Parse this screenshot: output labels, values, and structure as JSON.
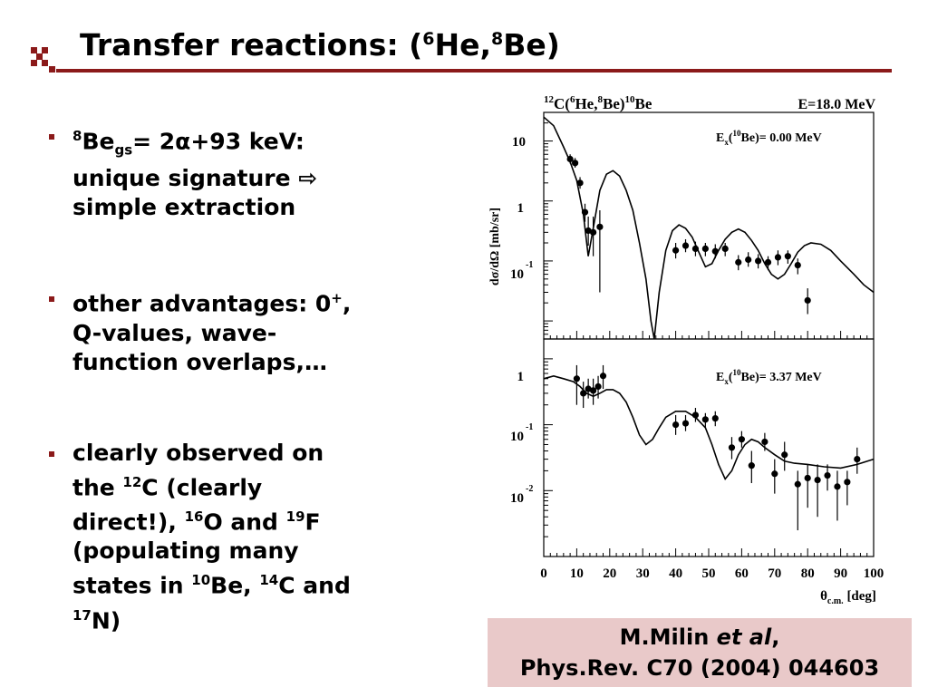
{
  "slide": {
    "title": {
      "prefix": "Transfer reactions: (",
      "sup1": "6",
      "mid": "He,",
      "sup2": "8",
      "suffix": "Be)"
    },
    "bullets": [
      {
        "line1a": "8",
        "line1b": "Be",
        "line1c": "gs",
        "line1d": "= 2α+93 keV:",
        "line2": "unique signature ⇨",
        "line3": "simple extraction"
      },
      {
        "line1a": "other advantages: 0",
        "line1b": "+",
        "line1c": ",",
        "line2": "Q-values, wave-",
        "line3": "function overlaps,…"
      },
      {
        "l1": "clearly observed on",
        "l2a": "the ",
        "l2b": "12",
        "l2c": "C (clearly",
        "l3a": "direct!), ",
        "l3b": "16",
        "l3c": "O and ",
        "l3d": "19",
        "l3e": "F",
        "l4": "(populating many",
        "l5a": "states in ",
        "l5b": "10",
        "l5c": "Be, ",
        "l5d": "14",
        "l5e": "C and",
        "l6a": "17",
        "l6b": "N)"
      }
    ],
    "reference": {
      "line1a": "M.Milin ",
      "line1b": "et al",
      "line1c": ",",
      "line2": "Phys.Rev. C70 (2004) 044603"
    },
    "colors": {
      "accent": "#8b1a1a",
      "reference_bg": "#e9c9c9"
    }
  },
  "chart_data": [
    {
      "type": "scatter",
      "reaction_label": "12C(6He,8Be)10Be",
      "energy_label": "E=18.0 MeV",
      "panel_label": "Ex(10Be)= 0.00 MeV",
      "ylabel": "dσ/dΩ [mb/sr]",
      "yscale": "log",
      "ylim": [
        0.005,
        30
      ],
      "xlim": [
        0,
        100
      ],
      "ytick_labels": [
        "10",
        "1",
        "10^-1"
      ],
      "points": [
        [
          8,
          5.0,
          6.0,
          4.2
        ],
        [
          9.5,
          4.3,
          5.2,
          3.6
        ],
        [
          11,
          2.0,
          2.5,
          1.6
        ],
        [
          12.5,
          0.65,
          0.9,
          0.45
        ],
        [
          13.5,
          0.32,
          0.55,
          0.18
        ],
        [
          15,
          0.3,
          0.55,
          0.12
        ],
        [
          17,
          0.37,
          0.7,
          0.03
        ],
        [
          40,
          0.15,
          0.2,
          0.11
        ],
        [
          43,
          0.18,
          0.23,
          0.14
        ],
        [
          46,
          0.16,
          0.21,
          0.12
        ],
        [
          49,
          0.16,
          0.2,
          0.12
        ],
        [
          52,
          0.145,
          0.19,
          0.11
        ],
        [
          55,
          0.16,
          0.2,
          0.12
        ],
        [
          59,
          0.095,
          0.125,
          0.07
        ],
        [
          62,
          0.105,
          0.14,
          0.08
        ],
        [
          65,
          0.1,
          0.13,
          0.075
        ],
        [
          68,
          0.095,
          0.12,
          0.07
        ],
        [
          71,
          0.115,
          0.15,
          0.085
        ],
        [
          74,
          0.12,
          0.15,
          0.09
        ],
        [
          77,
          0.085,
          0.11,
          0.06
        ],
        [
          80,
          0.022,
          0.035,
          0.013
        ]
      ],
      "curve": [
        [
          0,
          25
        ],
        [
          3,
          18
        ],
        [
          6,
          8
        ],
        [
          8,
          4.5
        ],
        [
          10,
          2.2
        ],
        [
          12,
          0.6
        ],
        [
          13.5,
          0.12
        ],
        [
          15,
          0.35
        ],
        [
          17,
          1.5
        ],
        [
          19,
          2.8
        ],
        [
          21,
          3.2
        ],
        [
          23,
          2.6
        ],
        [
          25,
          1.5
        ],
        [
          27,
          0.7
        ],
        [
          29,
          0.2
        ],
        [
          31,
          0.05
        ],
        [
          32.5,
          0.01
        ],
        [
          33.5,
          0.003
        ],
        [
          35,
          0.03
        ],
        [
          37,
          0.15
        ],
        [
          39,
          0.32
        ],
        [
          41,
          0.4
        ],
        [
          43,
          0.35
        ],
        [
          45,
          0.25
        ],
        [
          47,
          0.14
        ],
        [
          49,
          0.08
        ],
        [
          51,
          0.09
        ],
        [
          53,
          0.15
        ],
        [
          55,
          0.23
        ],
        [
          57,
          0.3
        ],
        [
          59,
          0.34
        ],
        [
          61,
          0.3
        ],
        [
          63,
          0.22
        ],
        [
          65,
          0.15
        ],
        [
          67,
          0.09
        ],
        [
          69,
          0.06
        ],
        [
          71,
          0.05
        ],
        [
          73,
          0.06
        ],
        [
          75,
          0.09
        ],
        [
          77,
          0.14
        ],
        [
          79,
          0.18
        ],
        [
          81,
          0.2
        ],
        [
          84,
          0.19
        ],
        [
          87,
          0.15
        ],
        [
          90,
          0.1
        ],
        [
          94,
          0.06
        ],
        [
          97,
          0.04
        ],
        [
          100,
          0.03
        ]
      ]
    },
    {
      "type": "scatter",
      "panel_label": "Ex(10Be)= 3.37 MeV",
      "yscale": "log",
      "ylim": [
        0.001,
        2
      ],
      "xlim": [
        0,
        100
      ],
      "xlabel": "θc.m. [deg]",
      "ytick_labels": [
        "1",
        "10^-1",
        "10^-2"
      ],
      "xtick_labels": [
        "0",
        "10",
        "20",
        "30",
        "40",
        "50",
        "60",
        "70",
        "80",
        "90",
        "100"
      ],
      "points": [
        [
          10,
          0.5,
          0.8,
          0.2
        ],
        [
          12,
          0.3,
          0.45,
          0.18
        ],
        [
          13.5,
          0.35,
          0.5,
          0.25
        ],
        [
          15,
          0.33,
          0.5,
          0.2
        ],
        [
          16.5,
          0.38,
          0.55,
          0.25
        ],
        [
          18,
          0.55,
          0.8,
          0.35
        ],
        [
          40,
          0.1,
          0.14,
          0.07
        ],
        [
          43,
          0.105,
          0.14,
          0.08
        ],
        [
          46,
          0.14,
          0.18,
          0.11
        ],
        [
          49,
          0.12,
          0.15,
          0.09
        ],
        [
          52,
          0.125,
          0.16,
          0.095
        ],
        [
          57,
          0.045,
          0.065,
          0.03
        ],
        [
          60,
          0.06,
          0.08,
          0.045
        ],
        [
          63,
          0.024,
          0.04,
          0.013
        ],
        [
          67,
          0.055,
          0.075,
          0.04
        ],
        [
          70,
          0.018,
          0.03,
          0.009
        ],
        [
          73,
          0.035,
          0.055,
          0.02
        ],
        [
          77,
          0.0125,
          0.02,
          0.0025
        ],
        [
          80,
          0.0155,
          0.025,
          0.0055
        ],
        [
          83,
          0.0145,
          0.025,
          0.004
        ],
        [
          86,
          0.017,
          0.025,
          0.01
        ],
        [
          89,
          0.0115,
          0.02,
          0.0035
        ],
        [
          92,
          0.0135,
          0.02,
          0.006
        ],
        [
          95,
          0.03,
          0.045,
          0.018
        ]
      ],
      "curve": [
        [
          0,
          0.5
        ],
        [
          3,
          0.55
        ],
        [
          6,
          0.5
        ],
        [
          9,
          0.45
        ],
        [
          11,
          0.38
        ],
        [
          13,
          0.3
        ],
        [
          15,
          0.27
        ],
        [
          17,
          0.3
        ],
        [
          19,
          0.34
        ],
        [
          21,
          0.34
        ],
        [
          23,
          0.3
        ],
        [
          25,
          0.22
        ],
        [
          27,
          0.13
        ],
        [
          29,
          0.07
        ],
        [
          31,
          0.05
        ],
        [
          33,
          0.06
        ],
        [
          35,
          0.09
        ],
        [
          37,
          0.13
        ],
        [
          40,
          0.16
        ],
        [
          43,
          0.16
        ],
        [
          46,
          0.13
        ],
        [
          49,
          0.09
        ],
        [
          51,
          0.05
        ],
        [
          53,
          0.025
        ],
        [
          55,
          0.015
        ],
        [
          57,
          0.02
        ],
        [
          59,
          0.035
        ],
        [
          61,
          0.05
        ],
        [
          63,
          0.06
        ],
        [
          65,
          0.055
        ],
        [
          67,
          0.045
        ],
        [
          70,
          0.035
        ],
        [
          73,
          0.028
        ],
        [
          76,
          0.026
        ],
        [
          80,
          0.025
        ],
        [
          85,
          0.023
        ],
        [
          90,
          0.022
        ],
        [
          95,
          0.025
        ],
        [
          100,
          0.03
        ]
      ]
    }
  ]
}
